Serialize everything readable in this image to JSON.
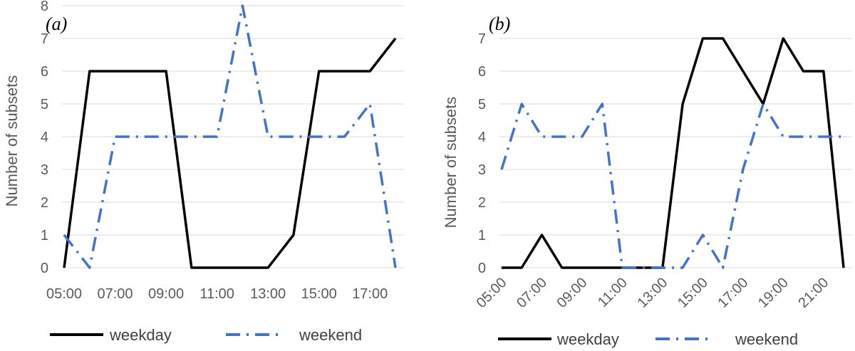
{
  "chart_data": [
    {
      "type": "line",
      "panel_label": "(a)",
      "ylabel": "Number of subsets",
      "xlabel": "",
      "ylim": [
        0,
        8
      ],
      "yticks": [
        "0",
        "1",
        "2",
        "3",
        "4",
        "5",
        "6",
        "7",
        "8"
      ],
      "x": [
        "05:00",
        "06:00",
        "07:00",
        "08:00",
        "09:00",
        "10:00",
        "11:00",
        "12:00",
        "13:00",
        "14:00",
        "15:00",
        "16:00",
        "17:00",
        "18:00"
      ],
      "xtick_labels": [
        "05:00",
        "07:00",
        "09:00",
        "11:00",
        "13:00",
        "15:00",
        "17:00"
      ],
      "x_label_rotation": 0,
      "grid": "horizontal",
      "legend_position": "bottom",
      "series": [
        {
          "name": "weekday",
          "color": "#000000",
          "style": "solid",
          "values": [
            0,
            6,
            6,
            6,
            6,
            0,
            0,
            0,
            0,
            1,
            6,
            6,
            6,
            7
          ]
        },
        {
          "name": "weekend",
          "color": "#4472C4",
          "style": "dash-dot",
          "values": [
            1,
            0,
            4,
            4,
            4,
            4,
            4,
            8,
            4,
            4,
            4,
            4,
            5,
            0
          ]
        }
      ]
    },
    {
      "type": "line",
      "panel_label": "(b)",
      "ylabel": "Number of subsets",
      "xlabel": "",
      "ylim": [
        0,
        7
      ],
      "yticks": [
        "0",
        "1",
        "2",
        "3",
        "4",
        "5",
        "6",
        "7"
      ],
      "x": [
        "05:00",
        "06:00",
        "07:00",
        "08:00",
        "09:00",
        "10:00",
        "11:00",
        "12:00",
        "13:00",
        "14:00",
        "15:00",
        "16:00",
        "17:00",
        "18:00",
        "19:00",
        "20:00",
        "21:00",
        "22:00"
      ],
      "xtick_labels": [
        "05:00",
        "07:00",
        "09:00",
        "11:00",
        "13:00",
        "15:00",
        "17:00",
        "19:00",
        "21:00"
      ],
      "x_label_rotation": -45,
      "grid": "horizontal",
      "legend_position": "bottom",
      "series": [
        {
          "name": "weekday",
          "color": "#000000",
          "style": "solid",
          "values": [
            0,
            0,
            1,
            0,
            0,
            0,
            0,
            0,
            0,
            5,
            7,
            7,
            6,
            5,
            7,
            6,
            6,
            0
          ]
        },
        {
          "name": "weekend",
          "color": "#4472C4",
          "style": "dash-dot",
          "values": [
            3,
            5,
            4,
            4,
            4,
            5,
            0,
            0,
            0,
            0,
            1,
            0,
            3,
            5,
            4,
            4,
            4,
            4
          ]
        }
      ]
    }
  ]
}
